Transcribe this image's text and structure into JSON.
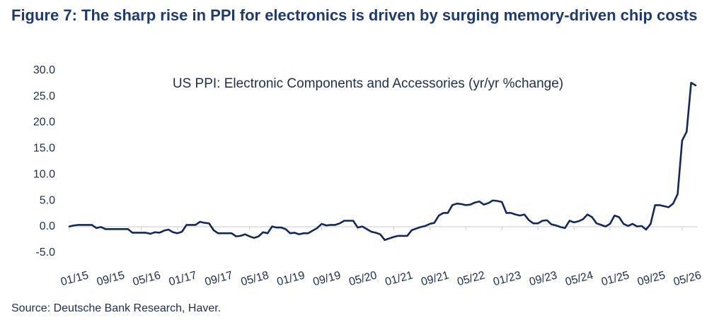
{
  "figure": {
    "title": "Figure 7: The sharp rise in PPI for electronics is driven by surging memory-driven chip costs",
    "source": "Source: Deutsche Bank Research, Haver."
  },
  "colors": {
    "title": "#1f3a6e",
    "line": "#13285a",
    "text": "#1f2d4a"
  },
  "chart_data": {
    "type": "line",
    "title": "US PPI: Electronic Components and Accessories (yr/yr %change)",
    "xlabel": "",
    "ylabel": "",
    "ylim": [
      -5,
      30
    ],
    "yticks": [
      "30.0",
      "25.0",
      "20.0",
      "15.0",
      "10.0",
      "5.0",
      "0.0",
      "-5.0"
    ],
    "ytick_values": [
      30,
      25,
      20,
      15,
      10,
      5,
      0,
      -5
    ],
    "x_tick_labels": [
      "01/15",
      "09/15",
      "05/16",
      "01/17",
      "09/17",
      "05/18",
      "01/19",
      "09/19",
      "05/20",
      "01/21",
      "09/21",
      "05/22",
      "01/23",
      "09/23",
      "05/24",
      "01/25",
      "09/25",
      "05/26"
    ],
    "x_start": "01/15",
    "x_end": "03/26",
    "grid": false,
    "legend": "none",
    "series": [
      {
        "values": [
          -0.2,
          0.0,
          0.1,
          0.1,
          0.1,
          0.1,
          -0.5,
          -0.3,
          -0.7,
          -0.7,
          -0.7,
          -0.7,
          -0.7,
          -0.7,
          -1.4,
          -1.4,
          -1.4,
          -1.4,
          -1.6,
          -1.3,
          -1.4,
          -1.0,
          -0.8,
          -1.3,
          -1.5,
          -1.2,
          0.1,
          0.1,
          0.1,
          0.7,
          0.5,
          0.4,
          -0.9,
          -1.5,
          -1.5,
          -1.5,
          -1.5,
          -2.1,
          -2.0,
          -1.7,
          -2.1,
          -2.4,
          -2.1,
          -1.3,
          -1.5,
          -0.2,
          -0.4,
          -0.4,
          -0.7,
          -1.5,
          -1.4,
          -1.7,
          -1.5,
          -1.5,
          -1.0,
          -0.5,
          0.3,
          0.0,
          0.1,
          0.1,
          0.4,
          0.9,
          0.9,
          0.9,
          -0.4,
          -0.2,
          -0.7,
          -1.2,
          -1.4,
          -1.7,
          -2.8,
          -2.5,
          -2.2,
          -2.0,
          -2.0,
          -2.0,
          -0.9,
          -0.6,
          -0.3,
          -0.1,
          0.3,
          0.5,
          1.9,
          2.4,
          2.4,
          3.9,
          4.2,
          4.1,
          3.9,
          4.0,
          4.4,
          4.6,
          4.0,
          4.3,
          4.8,
          4.7,
          4.5,
          2.4,
          2.4,
          2.1,
          1.9,
          2.1,
          1.0,
          0.4,
          0.4,
          0.9,
          1.0,
          0.2,
          0.0,
          -0.3,
          -0.5,
          0.9,
          0.6,
          0.8,
          1.2,
          2.1,
          1.6,
          0.4,
          0.1,
          -0.2,
          0.3,
          1.9,
          1.6,
          0.3,
          -0.1,
          0.3,
          -0.2,
          -0.1,
          -0.8,
          0.3,
          3.9,
          3.9,
          3.7,
          3.5,
          4.2,
          6.0,
          16.3,
          18.0,
          27.4,
          26.9
        ]
      }
    ]
  }
}
